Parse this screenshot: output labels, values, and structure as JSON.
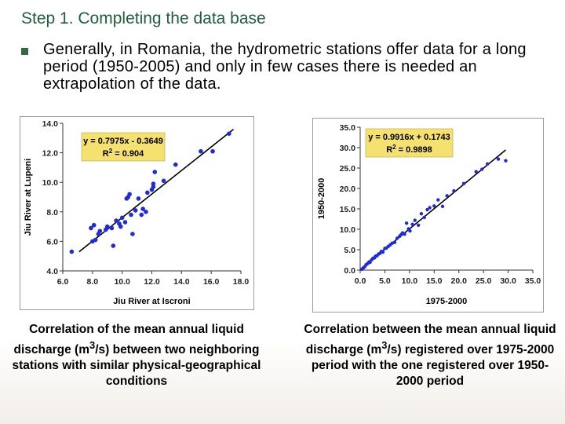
{
  "slide": {
    "title": "Step 1. Completing the data base",
    "bullet": "Generally, in Romania, the hydrometric stations offer data for a long period (1950-2005) and only in few cases there is needed an extrapolation of the data."
  },
  "captions": {
    "left_pre": "Correlation of the mean annual liquid discharge (m",
    "left_sup": "3",
    "left_post": "/s) between two neighboring stations with similar physical-geographical conditions",
    "right_pre": "Correlation between the mean annual liquid discharge (m",
    "right_sup": "3",
    "right_post": "/s) registered over 1975-2000 period with the one registered over 1950-2000 period"
  },
  "colors": {
    "title": "#1e5f3d",
    "bullet": "#2f6a45",
    "points": "#1f2bd8",
    "equation_box": "#f4e16f"
  },
  "chart_data": [
    {
      "type": "scatter",
      "xlabel": "Jiu River at Iscroni",
      "ylabel": "Jiu River at Lupeni",
      "xlim": [
        6.0,
        18.0
      ],
      "ylim": [
        4.0,
        14.0
      ],
      "x_ticks": [
        "6.0",
        "8.0",
        "10.0",
        "12.0",
        "14.0",
        "16.0",
        "18.0"
      ],
      "y_ticks": [
        "4.0",
        "6.0",
        "8.0",
        "10.0",
        "12.0",
        "14.0"
      ],
      "equation": "y = 0.7975x - 0.3649",
      "r2_pre": "R",
      "r2_sup": "2",
      "r2_post": " = 0.904",
      "trend": {
        "slope": 0.7975,
        "intercept": -0.3649,
        "x_range": [
          7.1,
          17.5
        ]
      },
      "x": [
        6.6,
        7.9,
        8.1,
        8.2,
        8.0,
        8.4,
        8.5,
        8.9,
        9.0,
        9.4,
        9.3,
        9.6,
        9.8,
        10.0,
        9.9,
        10.2,
        10.3,
        10.5,
        10.4,
        10.6,
        10.7,
        10.9,
        11.1,
        11.3,
        11.4,
        11.6,
        11.7,
        12.0,
        12.1,
        12.1,
        12.2,
        12.8,
        13.6,
        15.3,
        16.1,
        17.2
      ],
      "y": [
        5.3,
        6.9,
        7.1,
        6.1,
        6.0,
        6.5,
        6.7,
        6.8,
        7.0,
        5.7,
        6.9,
        7.4,
        7.2,
        7.6,
        7.0,
        7.3,
        8.9,
        9.2,
        9.0,
        7.8,
        6.5,
        8.1,
        8.9,
        7.8,
        8.2,
        8.0,
        9.3,
        9.5,
        9.7,
        9.9,
        10.7,
        10.1,
        11.2,
        12.1,
        12.1,
        13.3
      ]
    },
    {
      "type": "scatter",
      "xlabel": "1975-2000",
      "ylabel": "1950-2000",
      "xlim": [
        0,
        35
      ],
      "ylim": [
        0,
        35
      ],
      "x_ticks": [
        "0.0",
        "5.0",
        "10.0",
        "15.0",
        "20.0",
        "25.0",
        "30.0",
        "35.0"
      ],
      "y_ticks": [
        "0.0",
        "5.0",
        "10.0",
        "15.0",
        "20.0",
        "25.0",
        "30.0",
        "35.0"
      ],
      "equation": "y = 0.9916x + 0.1743",
      "r2_pre": "R",
      "r2_sup": "2",
      "r2_post": " = 0.9898",
      "trend": {
        "slope": 0.9916,
        "intercept": 0.1743,
        "x_range": [
          0,
          29.5
        ]
      },
      "x": [
        0.3,
        0.6,
        0.9,
        1.2,
        1.5,
        1.8,
        2.0,
        2.3,
        2.6,
        2.9,
        3.1,
        3.4,
        3.7,
        4.0,
        4.3,
        4.6,
        5.0,
        5.3,
        5.7,
        6.1,
        6.5,
        7.0,
        7.5,
        8.0,
        8.3,
        8.6,
        9.0,
        9.4,
        9.8,
        10.1,
        10.6,
        11.1,
        11.8,
        12.4,
        13.0,
        13.6,
        14.1,
        15.0,
        15.8,
        16.7,
        17.6,
        19.0,
        21.0,
        23.5,
        24.7,
        25.8,
        28.0,
        29.5
      ],
      "y": [
        0.2,
        0.5,
        0.8,
        1.3,
        1.6,
        2.0,
        1.9,
        2.5,
        2.9,
        3.0,
        3.4,
        3.5,
        3.9,
        4.1,
        4.6,
        4.4,
        5.3,
        5.4,
        5.8,
        6.2,
        6.6,
        6.8,
        7.8,
        8.3,
        8.7,
        9.1,
        8.8,
        11.5,
        10.1,
        9.6,
        11.2,
        12.2,
        11.0,
        13.8,
        12.9,
        14.8,
        15.3,
        15.7,
        17.2,
        15.6,
        18.2,
        19.4,
        21.2,
        24.1,
        24.7,
        26.0,
        27.2,
        26.8
      ]
    }
  ]
}
